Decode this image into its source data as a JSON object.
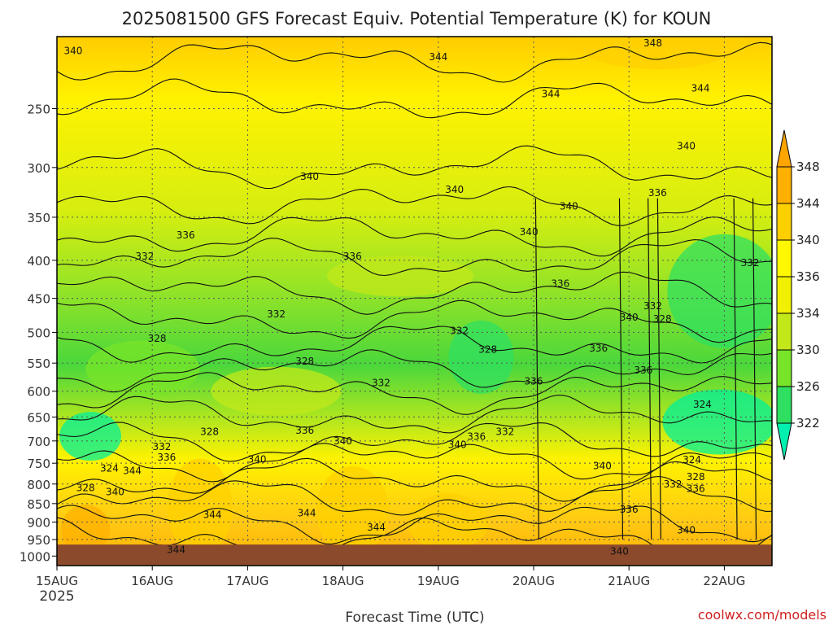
{
  "chart_data": {
    "type": "heatmap",
    "title": "2025081500 GFS Forecast Equiv. Potential Temperature (K) for KOUN",
    "xlabel": "Forecast Time (UTC)",
    "ylabel": "",
    "x_ticks": [
      "15AUG",
      "16AUG",
      "17AUG",
      "18AUG",
      "19AUG",
      "20AUG",
      "21AUG",
      "22AUG"
    ],
    "x_year_label": "2025",
    "x_range_days": [
      0,
      7.5
    ],
    "y_ticks": [
      250,
      300,
      350,
      400,
      450,
      500,
      550,
      600,
      650,
      700,
      750,
      800,
      850,
      900,
      950,
      1000
    ],
    "y_range_hpa": [
      200,
      1030
    ],
    "y_scale": "log-pressure",
    "ground_hpa": 965,
    "colorbar": {
      "levels": [
        322,
        326,
        330,
        334,
        336,
        340,
        344,
        348
      ],
      "colors": [
        "#00f09a",
        "#2fe060",
        "#78e428",
        "#c2e81a",
        "#f0f000",
        "#fff800",
        "#ffd000",
        "#ffb000"
      ],
      "extend": "both"
    },
    "colors": {
      "ground": "#8b4a2b",
      "contour": "#111111",
      "grid": "#555555"
    },
    "contour_labels": [
      {
        "value": "340",
        "day": 0.17,
        "p": 210
      },
      {
        "value": "344",
        "day": 4.0,
        "p": 214
      },
      {
        "value": "348",
        "day": 6.25,
        "p": 205
      },
      {
        "value": "344",
        "day": 5.18,
        "p": 240
      },
      {
        "value": "344",
        "day": 6.75,
        "p": 236
      },
      {
        "value": "340",
        "day": 2.65,
        "p": 310
      },
      {
        "value": "340",
        "day": 6.6,
        "p": 282
      },
      {
        "value": "340",
        "day": 4.17,
        "p": 323
      },
      {
        "value": "340",
        "day": 5.37,
        "p": 340
      },
      {
        "value": "340",
        "day": 4.95,
        "p": 368
      },
      {
        "value": "336",
        "day": 6.3,
        "p": 326
      },
      {
        "value": "336",
        "day": 1.35,
        "p": 372
      },
      {
        "value": "336",
        "day": 3.1,
        "p": 397
      },
      {
        "value": "332",
        "day": 0.92,
        "p": 397
      },
      {
        "value": "332",
        "day": 7.27,
        "p": 405
      },
      {
        "value": "336",
        "day": 5.28,
        "p": 432
      },
      {
        "value": "332",
        "day": 2.3,
        "p": 475
      },
      {
        "value": "332",
        "day": 6.25,
        "p": 463
      },
      {
        "value": "340",
        "day": 6.0,
        "p": 480
      },
      {
        "value": "328",
        "day": 6.35,
        "p": 482
      },
      {
        "value": "328",
        "day": 1.05,
        "p": 512
      },
      {
        "value": "332",
        "day": 4.22,
        "p": 500
      },
      {
        "value": "328",
        "day": 4.52,
        "p": 530
      },
      {
        "value": "336",
        "day": 5.68,
        "p": 528
      },
      {
        "value": "328",
        "day": 2.6,
        "p": 550
      },
      {
        "value": "336",
        "day": 6.15,
        "p": 565
      },
      {
        "value": "332",
        "day": 3.4,
        "p": 588
      },
      {
        "value": "336",
        "day": 5.0,
        "p": 585
      },
      {
        "value": "324",
        "day": 6.77,
        "p": 628
      },
      {
        "value": "328",
        "day": 1.6,
        "p": 684
      },
      {
        "value": "336",
        "day": 2.6,
        "p": 681
      },
      {
        "value": "336",
        "day": 4.4,
        "p": 694
      },
      {
        "value": "332",
        "day": 4.7,
        "p": 684
      },
      {
        "value": "340",
        "day": 3.0,
        "p": 704
      },
      {
        "value": "340",
        "day": 4.2,
        "p": 712
      },
      {
        "value": "332",
        "day": 1.1,
        "p": 716
      },
      {
        "value": "336",
        "day": 1.15,
        "p": 740
      },
      {
        "value": "340",
        "day": 2.1,
        "p": 745
      },
      {
        "value": "324",
        "day": 0.55,
        "p": 766
      },
      {
        "value": "344",
        "day": 0.79,
        "p": 772
      },
      {
        "value": "340",
        "day": 5.72,
        "p": 760
      },
      {
        "value": "324",
        "day": 6.66,
        "p": 746
      },
      {
        "value": "328",
        "day": 0.3,
        "p": 814
      },
      {
        "value": "340",
        "day": 0.61,
        "p": 824
      },
      {
        "value": "328",
        "day": 6.7,
        "p": 786
      },
      {
        "value": "332",
        "day": 6.46,
        "p": 804
      },
      {
        "value": "336",
        "day": 6.7,
        "p": 816
      },
      {
        "value": "344",
        "day": 1.63,
        "p": 884
      },
      {
        "value": "344",
        "day": 2.62,
        "p": 880
      },
      {
        "value": "344",
        "day": 3.35,
        "p": 920
      },
      {
        "value": "336",
        "day": 6.0,
        "p": 870
      },
      {
        "value": "340",
        "day": 6.6,
        "p": 928
      },
      {
        "value": "344",
        "day": 1.25,
        "p": 985
      },
      {
        "value": "340",
        "day": 5.9,
        "p": 990
      }
    ]
  },
  "credit": "coolwx.com/models"
}
